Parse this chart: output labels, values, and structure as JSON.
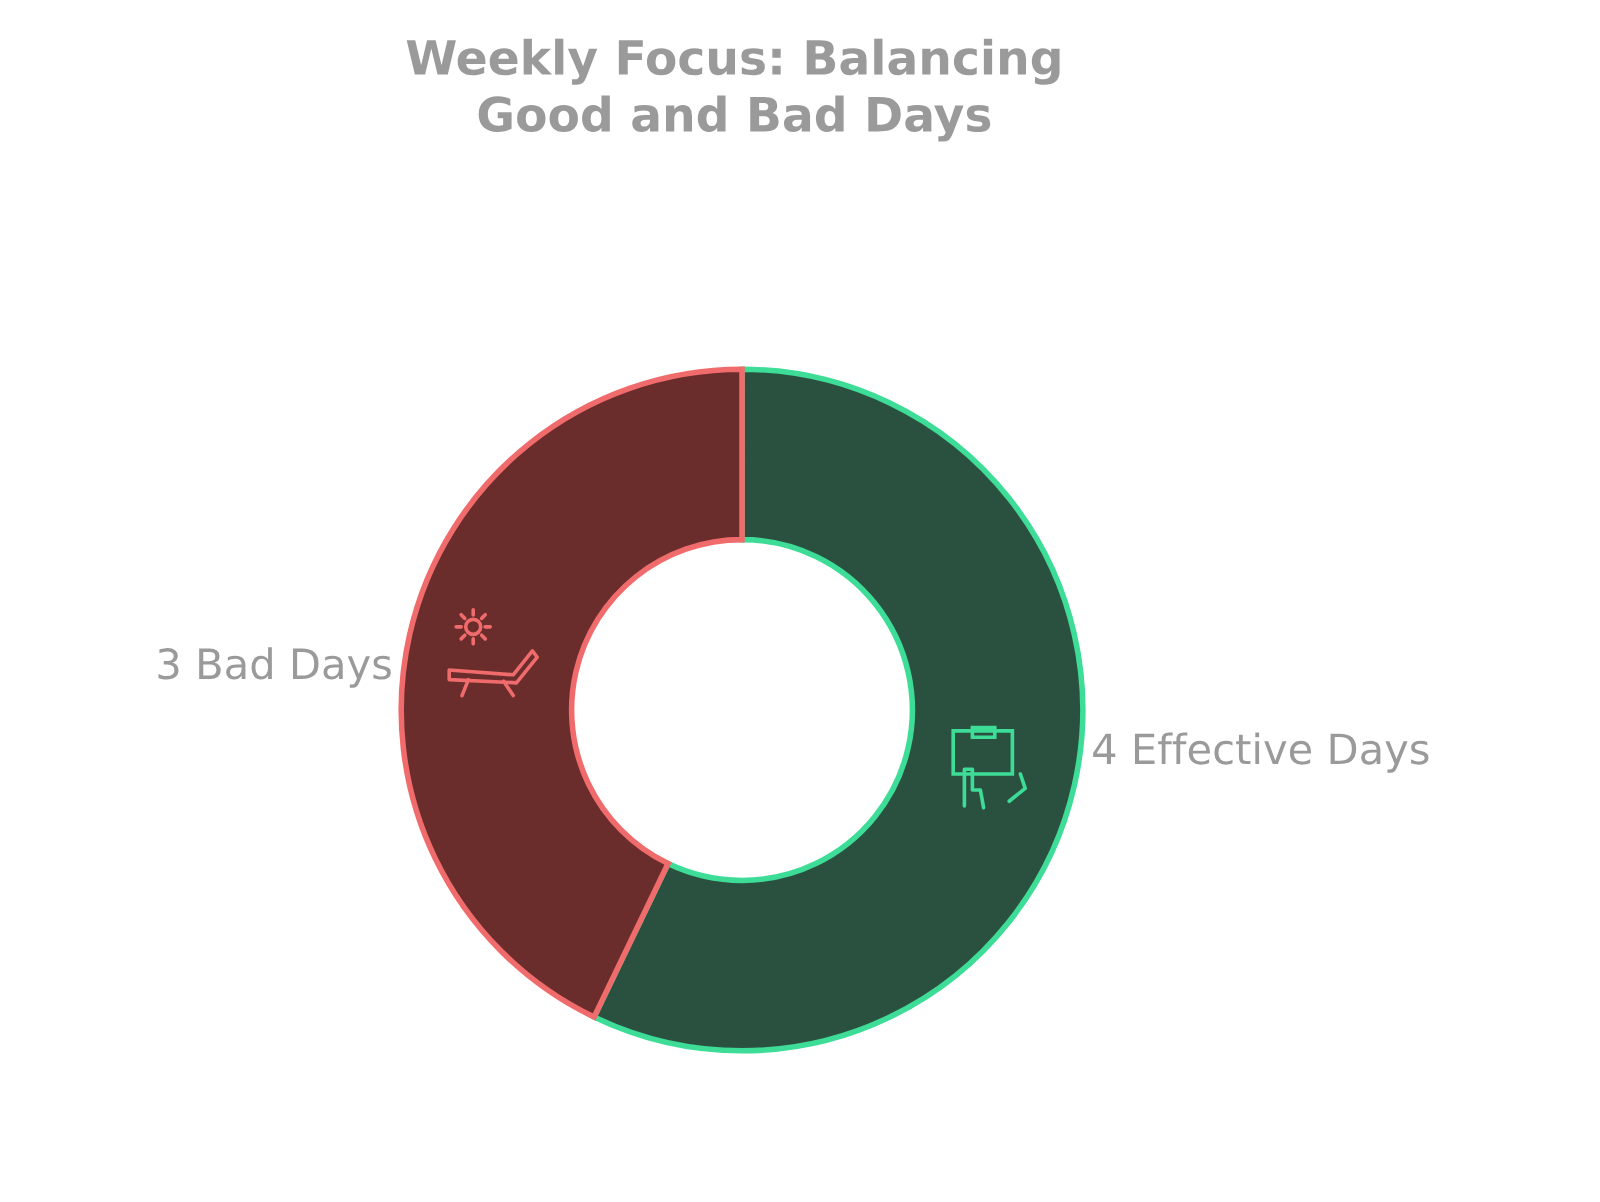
{
  "chart_data": {
    "type": "donut",
    "title": "Weekly Focus: Balancing\nGood and Bad Days",
    "categories": [
      "4 Effective Days",
      "3 Bad Days"
    ],
    "values": [
      4,
      3
    ],
    "colors": [
      "#2a5140",
      "#6b2c2c"
    ]
  }
}
